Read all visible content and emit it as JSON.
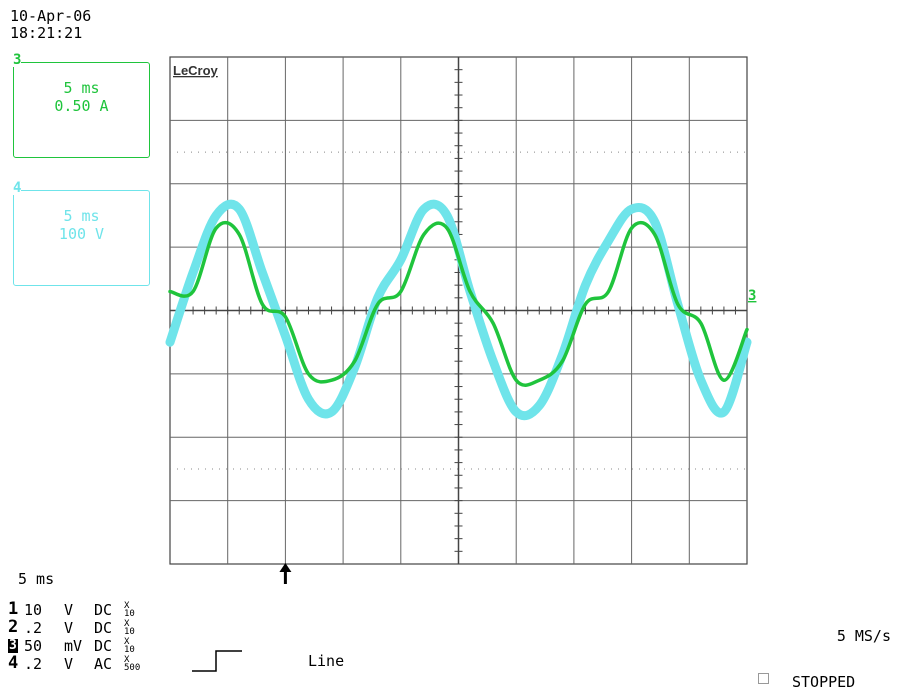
{
  "header": {
    "date": "10-Apr-06",
    "time": "18:21:21"
  },
  "channel_boxes": [
    {
      "num": "3",
      "timebase": "5 ms",
      "scale": "0.50 A",
      "color": "#1fc43c"
    },
    {
      "num": "4",
      "timebase": "5 ms",
      "scale": "100 V",
      "color": "#6fe4ea"
    }
  ],
  "brand": "LeCroy",
  "trace_marker": "3",
  "timebase_label": "5 ms",
  "channels": [
    {
      "num": "1",
      "volts": "10",
      "unit": "V",
      "coupling": "DC",
      "probe_top": "X",
      "probe_bottom": "10",
      "boxed": false
    },
    {
      "num": "2",
      "volts": ".2",
      "unit": "V",
      "coupling": "DC",
      "probe_top": "X",
      "probe_bottom": "10",
      "boxed": false
    },
    {
      "num": "3",
      "volts": "50",
      "unit": "mV",
      "coupling": "DC",
      "probe_top": "X",
      "probe_bottom": "10",
      "boxed": true
    },
    {
      "num": "4",
      "volts": ".2",
      "unit": "V",
      "coupling": "AC",
      "probe_top": "X",
      "probe_bottom": "500",
      "boxed": false
    }
  ],
  "trigger": {
    "source": "Line"
  },
  "sample_rate": "5 MS/s",
  "status": "STOPPED",
  "colors": {
    "ch3": "#1fc43c",
    "ch4": "#6fe4ea",
    "grid": "#555555"
  },
  "chart_data": {
    "type": "line",
    "xlim": [
      0,
      50
    ],
    "ylim": [
      -4,
      4
    ],
    "grid": true,
    "trigger_time_ms": 10,
    "series": [
      {
        "channel": "3",
        "color": "#1fc43c",
        "x": [
          0,
          2,
          4,
          6,
          8,
          10,
          12,
          14,
          16,
          18,
          20,
          22,
          24,
          26,
          28,
          30,
          32,
          34,
          36,
          38,
          40,
          42,
          44,
          46,
          48,
          50
        ],
        "y": [
          0.3,
          0.3,
          1.3,
          1.2,
          0.1,
          -0.1,
          -1.0,
          -1.1,
          -0.8,
          0.1,
          0.3,
          1.2,
          1.3,
          0.3,
          -0.2,
          -1.1,
          -1.1,
          -0.8,
          0.1,
          0.3,
          1.3,
          1.2,
          0.1,
          -0.2,
          -1.1,
          -0.3
        ]
      },
      {
        "channel": "4",
        "color": "#6fe4ea",
        "x": [
          0,
          2,
          4,
          6,
          8,
          10,
          12,
          14,
          16,
          18,
          20,
          22,
          24,
          26,
          28,
          30,
          32,
          34,
          36,
          38,
          40,
          42,
          44,
          46,
          48,
          50
        ],
        "y": [
          -0.5,
          0.6,
          1.5,
          1.6,
          0.6,
          -0.4,
          -1.4,
          -1.6,
          -0.9,
          0.2,
          0.8,
          1.6,
          1.5,
          0.3,
          -0.8,
          -1.6,
          -1.5,
          -0.7,
          0.4,
          1.1,
          1.6,
          1.4,
          0.1,
          -1.1,
          -1.6,
          -0.5
        ]
      }
    ]
  }
}
